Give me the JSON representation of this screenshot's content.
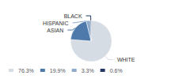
{
  "chart_data": {
    "type": "pie",
    "categories": [
      "WHITE",
      "ASIAN",
      "HISPANIC",
      "BLACK"
    ],
    "values": [
      76.3,
      19.9,
      3.3,
      0.6
    ],
    "value_labels": [
      "76.3%",
      "19.9%",
      "3.3%",
      "0.6%"
    ],
    "colors": [
      "#d6dce4",
      "#4d7aab",
      "#8eaacc",
      "#1f3864"
    ],
    "legend": "lower left"
  }
}
